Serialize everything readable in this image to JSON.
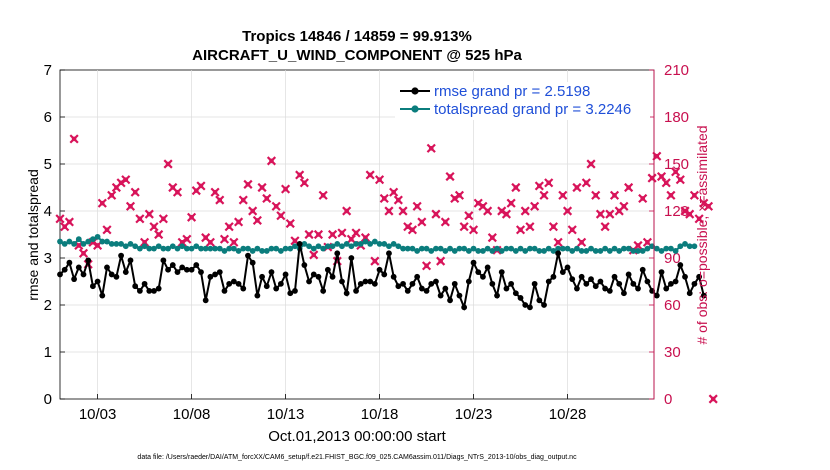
{
  "chart_data": {
    "type": "line",
    "title": "Tropics 14846 / 14859 = 99.913%",
    "subtitle": "AIRCRAFT_U_WIND_COMPONENT @ 525 hPa",
    "xlabel": "Oct.01,2013 00:00:00 start",
    "ylabel": "rmse and totalspread",
    "y2label": "# of obs: o=possible; ×=assimilated",
    "footer": "data file: /Users/raeder/DAI/ATM_forcXX/CAM6_setup/f.e21.FHIST_BGC.f09_025.CAM6assim.011/Diags_NTrS_2013-10/obs_diag_output.nc",
    "xlim": [
      1,
      32.6
    ],
    "ylim": [
      0,
      7
    ],
    "y2lim": [
      0,
      210
    ],
    "xticks": [
      {
        "value": 3,
        "label": "10/03"
      },
      {
        "value": 8,
        "label": "10/08"
      },
      {
        "value": 13,
        "label": "10/13"
      },
      {
        "value": 18,
        "label": "10/18"
      },
      {
        "value": 23,
        "label": "10/23"
      },
      {
        "value": 28,
        "label": "10/28"
      }
    ],
    "yticks": [
      "0",
      "1",
      "2",
      "3",
      "4",
      "5",
      "6",
      "7"
    ],
    "y2ticks": [
      "0",
      "30",
      "60",
      "90",
      "120",
      "150",
      "180",
      "210"
    ],
    "colors": {
      "rmse": "#000000",
      "spread": "#0b7d7d",
      "obs": "#d8145a",
      "legend_text": "#1f4fd8",
      "right_axis": "#c8104f"
    },
    "legend": [
      {
        "name": "rmse grand pr = 2.5198",
        "color": "#000000"
      },
      {
        "name": "totalspread grand pr = 3.2246",
        "color": "#0b7d7d"
      }
    ],
    "series": [
      {
        "name": "rmse",
        "x_start": 1.0,
        "x_step": 0.25,
        "values": [
          2.65,
          2.75,
          2.9,
          2.55,
          2.8,
          2.65,
          2.95,
          2.4,
          2.5,
          2.2,
          2.8,
          2.65,
          2.6,
          3.05,
          2.7,
          2.95,
          2.4,
          2.3,
          2.45,
          2.3,
          2.3,
          2.35,
          2.95,
          2.75,
          2.85,
          2.7,
          2.8,
          2.75,
          2.75,
          2.85,
          2.7,
          2.1,
          2.6,
          2.65,
          2.7,
          2.3,
          2.45,
          2.5,
          2.45,
          2.35,
          3.05,
          2.9,
          2.2,
          2.6,
          2.4,
          2.7,
          2.35,
          2.45,
          2.65,
          2.25,
          2.3,
          3.3,
          2.85,
          2.5,
          2.65,
          2.6,
          2.3,
          2.75,
          2.6,
          3.1,
          2.5,
          2.25,
          3.0,
          2.3,
          2.45,
          2.5,
          2.5,
          2.45,
          2.75,
          2.65,
          3.1,
          2.6,
          2.4,
          2.45,
          2.3,
          2.45,
          2.6,
          2.35,
          2.3,
          2.45,
          2.5,
          2.2,
          2.35,
          2.1,
          2.45,
          2.2,
          1.95,
          2.5,
          2.9,
          2.7,
          2.6,
          2.8,
          2.45,
          2.2,
          2.7,
          2.35,
          2.45,
          2.25,
          2.15,
          2.0,
          1.95,
          2.45,
          2.1,
          2.0,
          2.5,
          2.6,
          3.1,
          2.7,
          2.8,
          2.55,
          2.35,
          2.6,
          2.45,
          2.55,
          2.4,
          2.5,
          2.35,
          2.3,
          2.6,
          2.45,
          2.25,
          2.65,
          2.45,
          2.35,
          2.75,
          2.5,
          2.3,
          2.2,
          2.7,
          2.35,
          2.45,
          2.5,
          2.85,
          2.6,
          2.25,
          2.45,
          2.6,
          2.2
        ]
      },
      {
        "name": "totalspread",
        "x_start": 1.0,
        "x_step": 0.25,
        "values": [
          3.35,
          3.3,
          3.35,
          3.3,
          3.4,
          3.3,
          3.35,
          3.4,
          3.45,
          3.35,
          3.35,
          3.3,
          3.3,
          3.3,
          3.25,
          3.3,
          3.25,
          3.2,
          3.25,
          3.2,
          3.2,
          3.25,
          3.2,
          3.2,
          3.25,
          3.2,
          3.25,
          3.2,
          3.2,
          3.25,
          3.2,
          3.2,
          3.2,
          3.2,
          3.2,
          3.15,
          3.2,
          3.2,
          3.15,
          3.2,
          3.2,
          3.15,
          3.2,
          3.15,
          3.15,
          3.2,
          3.2,
          3.15,
          3.2,
          3.2,
          3.25,
          3.2,
          3.3,
          3.25,
          3.2,
          3.25,
          3.2,
          3.25,
          3.25,
          3.3,
          3.25,
          3.3,
          3.25,
          3.3,
          3.3,
          3.35,
          3.3,
          3.35,
          3.3,
          3.3,
          3.25,
          3.3,
          3.25,
          3.2,
          3.2,
          3.2,
          3.15,
          3.2,
          3.2,
          3.15,
          3.2,
          3.2,
          3.15,
          3.2,
          3.15,
          3.2,
          3.2,
          3.15,
          3.2,
          3.15,
          3.15,
          3.2,
          3.15,
          3.2,
          3.15,
          3.2,
          3.2,
          3.15,
          3.2,
          3.15,
          3.2,
          3.2,
          3.15,
          3.15,
          3.2,
          3.15,
          3.2,
          3.2,
          3.2,
          3.15,
          3.2,
          3.15,
          3.15,
          3.2,
          3.15,
          3.15,
          3.2,
          3.15,
          3.2,
          3.15,
          3.2,
          3.2,
          3.15,
          3.15,
          3.15,
          3.2,
          3.25,
          3.2,
          3.15,
          3.2,
          3.2,
          3.15,
          3.25,
          3.3,
          3.25,
          3.25
        ]
      },
      {
        "name": "obs_count",
        "axis": "right",
        "x_start": 1.0,
        "x_step": 0.25,
        "values": [
          115,
          110,
          113,
          166,
          98,
          93,
          86,
          100,
          98,
          125,
          108,
          130,
          135,
          138,
          140,
          123,
          132,
          115,
          100,
          118,
          110,
          105,
          115,
          150,
          135,
          132,
          100,
          102,
          116,
          133,
          136,
          103,
          100,
          132,
          127,
          102,
          110,
          100,
          113,
          127,
          137,
          120,
          114,
          135,
          128,
          152,
          123,
          117,
          134,
          112,
          101,
          143,
          138,
          105,
          92,
          105,
          130,
          97,
          105,
          88,
          106,
          120,
          102,
          106,
          98,
          103,
          143,
          88,
          140,
          128,
          120,
          132,
          127,
          120,
          110,
          108,
          123,
          113,
          85,
          160,
          118,
          88,
          113,
          142,
          128,
          130,
          110,
          117,
          108,
          125,
          123,
          120,
          103,
          95,
          120,
          118,
          125,
          135,
          108,
          120,
          110,
          123,
          136,
          130,
          138,
          110,
          100,
          130,
          120,
          108,
          135,
          100,
          138,
          150,
          130,
          118,
          110,
          118,
          130,
          120,
          123,
          135,
          95,
          98,
          128,
          100,
          141,
          155,
          142,
          138,
          130,
          145,
          140,
          120,
          118,
          130,
          115,
          125,
          123,
          0
        ]
      }
    ]
  }
}
